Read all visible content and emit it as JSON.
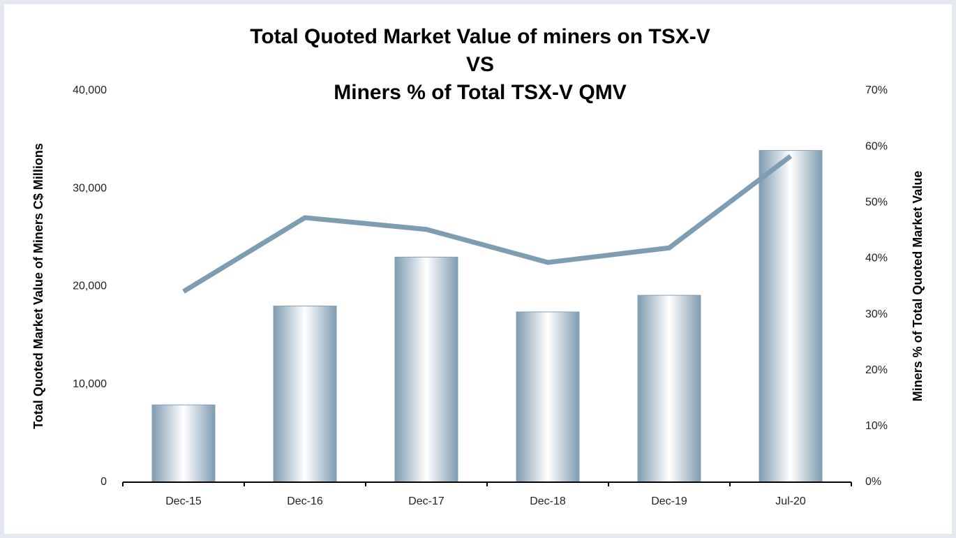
{
  "chart_data": {
    "type": "bar-line",
    "title": [
      "Total Quoted Market Value of miners on TSX-V",
      "VS",
      "Miners % of Total TSX-V QMV"
    ],
    "y_label": "Total Quoted Market Value of Miners C$ Millions",
    "y2_label": "Miners % of Total Quoted Market Value",
    "categories": [
      "Dec-15",
      "Dec-16",
      "Dec-17",
      "Dec-18",
      "Dec-19",
      "Jul-20"
    ],
    "series": [
      {
        "type": "bar",
        "color": "#86a2b6",
        "values": [
          7900,
          18000,
          23000,
          17400,
          19100,
          33900
        ]
      },
      {
        "type": "line",
        "color": "#7f9db1",
        "axis": "y2",
        "values": [
          34.1,
          47.3,
          45.2,
          39.3,
          41.9,
          58.3
        ]
      }
    ],
    "ylim": [
      0,
      40000
    ],
    "yticks": [
      0,
      {
        "value": 10000,
        "label": "10,000"
      },
      {
        "value": 20000,
        "label": "20,000"
      },
      {
        "value": 30000,
        "label": "30,000"
      },
      {
        "value": 40000,
        "label": "40,000"
      }
    ],
    "y2lim": [
      0,
      70
    ],
    "y2ticks": [
      {
        "value": 0,
        "label": "0%"
      },
      {
        "value": 10,
        "label": "10%"
      },
      {
        "value": 20,
        "label": "20%"
      },
      {
        "value": 30,
        "label": "30%"
      },
      {
        "value": 40,
        "label": "40%"
      },
      {
        "value": 50,
        "label": "50%"
      },
      {
        "value": 60,
        "label": "60%"
      },
      {
        "value": 70,
        "label": "70%"
      }
    ]
  }
}
